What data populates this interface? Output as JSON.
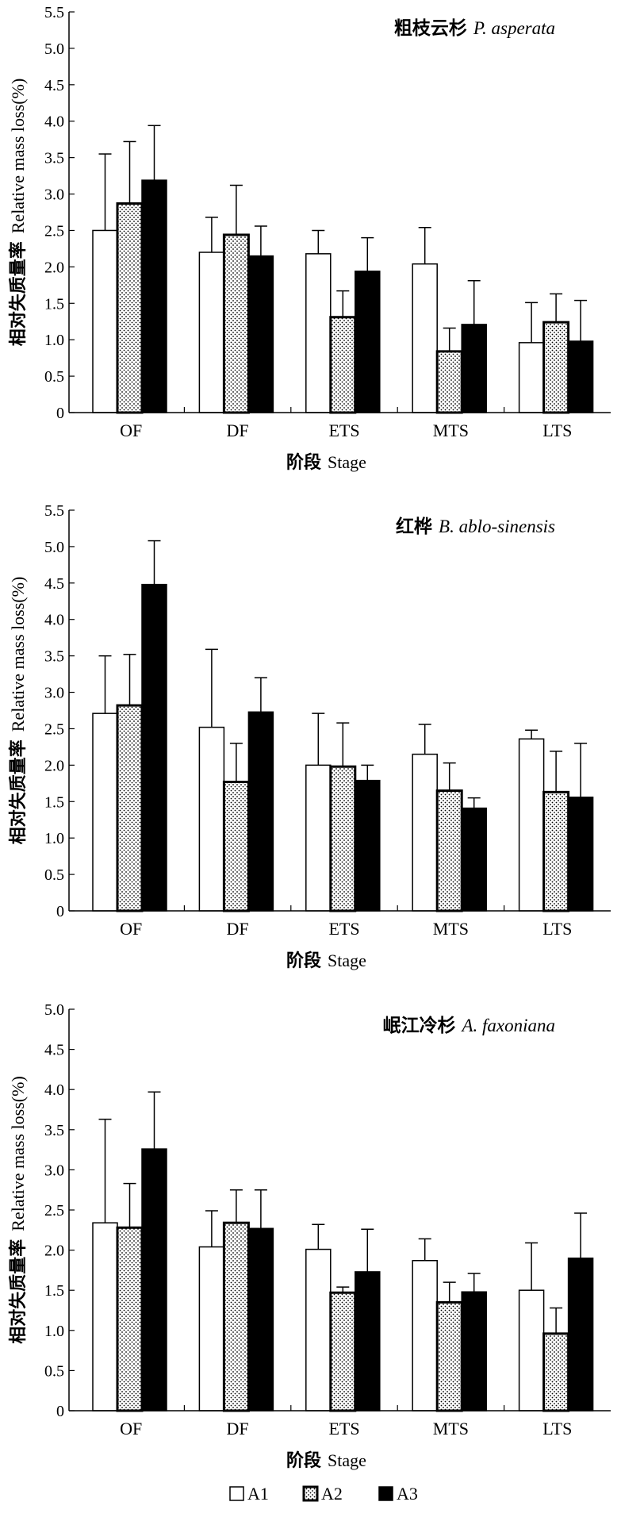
{
  "chart_data": [
    {
      "type": "bar",
      "title_cn": "粗枝云杉",
      "title_latin": "P. asperata",
      "categories": [
        "OF",
        "DF",
        "ETS",
        "MTS",
        "LTS"
      ],
      "ylim": [
        0,
        5.5
      ],
      "yticks": [
        "0",
        "0.5",
        "1.0",
        "1.5",
        "2.0",
        "2.5",
        "3.0",
        "3.5",
        "4.0",
        "4.5",
        "5.0",
        "5.5"
      ],
      "ylabel_cn": "相对失质量率",
      "ylabel_en": "Relative mass loss(%)",
      "xlabel_cn": "阶段",
      "xlabel_en": "Stage",
      "series": [
        {
          "name": "A1",
          "values": [
            2.5,
            2.2,
            2.18,
            2.04,
            0.96
          ],
          "errors": [
            1.05,
            0.48,
            0.32,
            0.5,
            0.55
          ]
        },
        {
          "name": "A2",
          "values": [
            2.87,
            2.44,
            1.31,
            0.84,
            1.24
          ],
          "errors": [
            0.85,
            0.68,
            0.36,
            0.32,
            0.39
          ]
        },
        {
          "name": "A3",
          "values": [
            3.19,
            2.15,
            1.94,
            1.21,
            0.98
          ],
          "errors": [
            0.75,
            0.41,
            0.46,
            0.6,
            0.56
          ]
        }
      ]
    },
    {
      "type": "bar",
      "title_cn": "红桦",
      "title_latin": "B. ablo-sinensis",
      "categories": [
        "OF",
        "DF",
        "ETS",
        "MTS",
        "LTS"
      ],
      "ylim": [
        0,
        5.5
      ],
      "yticks": [
        "0",
        "0.5",
        "1.0",
        "1.5",
        "2.0",
        "2.5",
        "3.0",
        "3.5",
        "4.0",
        "4.5",
        "5.0",
        "5.5"
      ],
      "ylabel_cn": "相对失质量率",
      "ylabel_en": "Relative mass loss(%)",
      "xlabel_cn": "阶段",
      "xlabel_en": "Stage",
      "series": [
        {
          "name": "A1",
          "values": [
            2.71,
            2.52,
            2.0,
            2.15,
            2.36
          ],
          "errors": [
            0.79,
            1.07,
            0.71,
            0.41,
            0.12
          ]
        },
        {
          "name": "A2",
          "values": [
            2.82,
            1.77,
            1.98,
            1.65,
            1.63
          ],
          "errors": [
            0.7,
            0.53,
            0.6,
            0.38,
            0.56
          ]
        },
        {
          "name": "A3",
          "values": [
            4.48,
            2.73,
            1.79,
            1.41,
            1.56
          ],
          "errors": [
            0.6,
            0.47,
            0.21,
            0.14,
            0.74
          ]
        }
      ]
    },
    {
      "type": "bar",
      "title_cn": "岷江冷杉",
      "title_latin": "A. faxoniana",
      "categories": [
        "OF",
        "DF",
        "ETS",
        "MTS",
        "LTS"
      ],
      "ylim": [
        0,
        5.0
      ],
      "yticks": [
        "0",
        "0.5",
        "1.0",
        "1.5",
        "2.0",
        "2.5",
        "3.0",
        "3.5",
        "4.0",
        "4.5",
        "5.0"
      ],
      "ylabel_cn": "相对失质量率",
      "ylabel_en": "Relative mass loss(%)",
      "xlabel_cn": "阶段",
      "xlabel_en": "Stage",
      "series": [
        {
          "name": "A1",
          "values": [
            2.34,
            2.04,
            2.01,
            1.87,
            1.5
          ],
          "errors": [
            1.29,
            0.45,
            0.31,
            0.27,
            0.59
          ]
        },
        {
          "name": "A2",
          "values": [
            2.28,
            2.34,
            1.47,
            1.35,
            0.96
          ],
          "errors": [
            0.55,
            0.41,
            0.07,
            0.25,
            0.32
          ]
        },
        {
          "name": "A3",
          "values": [
            3.26,
            2.27,
            1.73,
            1.48,
            1.9
          ],
          "errors": [
            0.71,
            0.48,
            0.53,
            0.23,
            0.56
          ]
        }
      ]
    }
  ],
  "legend": {
    "position": "bottom-center",
    "items": [
      {
        "label": "A1",
        "style": "white"
      },
      {
        "label": "A2",
        "style": "dotted"
      },
      {
        "label": "A3",
        "style": "black"
      }
    ]
  },
  "colors": {
    "A1": "#ffffff",
    "A2": "#ffffff",
    "A3": "#000000",
    "stroke": "#000000"
  }
}
